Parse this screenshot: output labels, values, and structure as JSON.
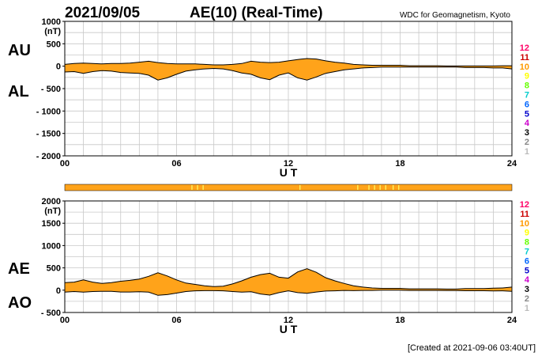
{
  "header": {
    "date": "2021/09/05",
    "title": "AE(10) (Real-Time)",
    "source": "WDC for Geomagnetism, Kyoto"
  },
  "footer": {
    "created": "[Created at 2021-09-06 03:40UT]"
  },
  "station_count_labels": [
    "12",
    "11",
    "10",
    "9",
    "8",
    "7",
    "6",
    "5",
    "4",
    "3",
    "2",
    "1"
  ],
  "station_count_colors": [
    "#ff0066",
    "#cc0000",
    "#ff9900",
    "#ffff00",
    "#66ff00",
    "#00cccc",
    "#0066ff",
    "#0000cc",
    "#cc00cc",
    "#000000",
    "#888888",
    "#bbbbbb"
  ],
  "colors": {
    "fill": "#ffa31a",
    "line": "#000000",
    "grid": "#c8c8c8",
    "station_bar": "#ffa31a",
    "station_bar_tick": "#ffff66"
  },
  "chart_data": [
    {
      "type": "area",
      "panel": "AU/AL",
      "labels_upper": "AU",
      "labels_lower": "AL",
      "ylabel": "(nT)",
      "xlabel": "U T",
      "ylim": [
        -2000,
        1000
      ],
      "yticks": [
        1000,
        500,
        0,
        -500,
        -1000,
        -1500,
        -2000
      ],
      "ytick_labels": [
        "1000",
        "500",
        "0",
        "- 500",
        "- 1000",
        "- 1500",
        "- 2000"
      ],
      "xlim": [
        0,
        24
      ],
      "xticks": [
        0,
        6,
        12,
        18,
        24
      ],
      "xtick_labels": [
        "00",
        "06",
        "12",
        "18",
        "24"
      ],
      "grid": true,
      "series": [
        {
          "name": "AU",
          "x": [
            0,
            0.5,
            1,
            1.5,
            2,
            2.5,
            3,
            3.5,
            4,
            4.5,
            5,
            5.5,
            6,
            6.5,
            7,
            7.5,
            8,
            8.5,
            9,
            9.5,
            10,
            10.5,
            11,
            11.5,
            12,
            12.5,
            13,
            13.5,
            14,
            14.5,
            15,
            15.5,
            16,
            16.5,
            17,
            17.5,
            18,
            18.5,
            19,
            19.5,
            20,
            20.5,
            21,
            21.5,
            22,
            22.5,
            23,
            23.5,
            24
          ],
          "values": [
            40,
            60,
            70,
            60,
            50,
            60,
            60,
            70,
            90,
            110,
            80,
            60,
            50,
            50,
            50,
            40,
            30,
            30,
            40,
            60,
            110,
            90,
            80,
            90,
            120,
            150,
            170,
            160,
            120,
            90,
            70,
            40,
            30,
            20,
            20,
            20,
            20,
            10,
            10,
            10,
            10,
            5,
            5,
            5,
            5,
            5,
            5,
            10,
            10
          ]
        },
        {
          "name": "AL",
          "x": [
            0,
            0.5,
            1,
            1.5,
            2,
            2.5,
            3,
            3.5,
            4,
            4.5,
            5,
            5.5,
            6,
            6.5,
            7,
            7.5,
            8,
            8.5,
            9,
            9.5,
            10,
            10.5,
            11,
            11.5,
            12,
            12.5,
            13,
            13.5,
            14,
            14.5,
            15,
            15.5,
            16,
            16.5,
            17,
            17.5,
            18,
            18.5,
            19,
            19.5,
            20,
            20.5,
            21,
            21.5,
            22,
            22.5,
            23,
            23.5,
            24
          ],
          "values": [
            -130,
            -120,
            -160,
            -120,
            -100,
            -110,
            -140,
            -150,
            -160,
            -200,
            -310,
            -260,
            -180,
            -110,
            -80,
            -60,
            -50,
            -60,
            -100,
            -150,
            -180,
            -260,
            -300,
            -200,
            -150,
            -260,
            -310,
            -240,
            -160,
            -120,
            -80,
            -60,
            -40,
            -30,
            -20,
            -20,
            -20,
            -20,
            -20,
            -20,
            -20,
            -20,
            -20,
            -30,
            -30,
            -30,
            -40,
            -40,
            -60
          ]
        }
      ]
    },
    {
      "type": "area",
      "panel": "AE/AO",
      "labels_upper": "AE",
      "labels_lower": "AO",
      "ylabel": "(nT)",
      "xlabel": "U T",
      "ylim": [
        -500,
        2000
      ],
      "yticks": [
        2000,
        1500,
        1000,
        500,
        0,
        -500
      ],
      "ytick_labels": [
        "2000",
        "1500",
        "1000",
        "500",
        "0",
        "- 500"
      ],
      "xlim": [
        0,
        24
      ],
      "xticks": [
        0,
        6,
        12,
        18,
        24
      ],
      "xtick_labels": [
        "00",
        "06",
        "12",
        "18",
        "24"
      ],
      "grid": true,
      "series": [
        {
          "name": "AE",
          "x": [
            0,
            0.5,
            1,
            1.5,
            2,
            2.5,
            3,
            3.5,
            4,
            4.5,
            5,
            5.5,
            6,
            6.5,
            7,
            7.5,
            8,
            8.5,
            9,
            9.5,
            10,
            10.5,
            11,
            11.5,
            12,
            12.5,
            13,
            13.5,
            14,
            14.5,
            15,
            15.5,
            16,
            16.5,
            17,
            17.5,
            18,
            18.5,
            19,
            19.5,
            20,
            20.5,
            21,
            21.5,
            22,
            22.5,
            23,
            23.5,
            24
          ],
          "values": [
            170,
            180,
            230,
            180,
            150,
            170,
            200,
            220,
            250,
            310,
            390,
            320,
            230,
            160,
            130,
            100,
            80,
            90,
            140,
            210,
            290,
            350,
            380,
            290,
            270,
            410,
            480,
            400,
            280,
            210,
            150,
            100,
            70,
            50,
            40,
            40,
            40,
            30,
            30,
            30,
            30,
            25,
            25,
            35,
            35,
            35,
            45,
            50,
            70
          ]
        },
        {
          "name": "AO",
          "x": [
            0,
            0.5,
            1,
            1.5,
            2,
            2.5,
            3,
            3.5,
            4,
            4.5,
            5,
            5.5,
            6,
            6.5,
            7,
            7.5,
            8,
            8.5,
            9,
            9.5,
            10,
            10.5,
            11,
            11.5,
            12,
            12.5,
            13,
            13.5,
            14,
            14.5,
            15,
            15.5,
            16,
            16.5,
            17,
            17.5,
            18,
            18.5,
            19,
            19.5,
            20,
            20.5,
            21,
            21.5,
            22,
            22.5,
            23,
            23.5,
            24
          ],
          "values": [
            -45,
            -30,
            -45,
            -30,
            -25,
            -25,
            -40,
            -40,
            -35,
            -45,
            -115,
            -100,
            -65,
            -30,
            -15,
            -10,
            -10,
            -15,
            -30,
            -45,
            -35,
            -85,
            -110,
            -55,
            -15,
            -55,
            -70,
            -40,
            -20,
            -15,
            -5,
            -10,
            -5,
            -5,
            0,
            0,
            0,
            -5,
            -5,
            -5,
            -5,
            -8,
            -8,
            -12,
            -12,
            -12,
            -18,
            -15,
            -25
          ]
        }
      ]
    }
  ]
}
